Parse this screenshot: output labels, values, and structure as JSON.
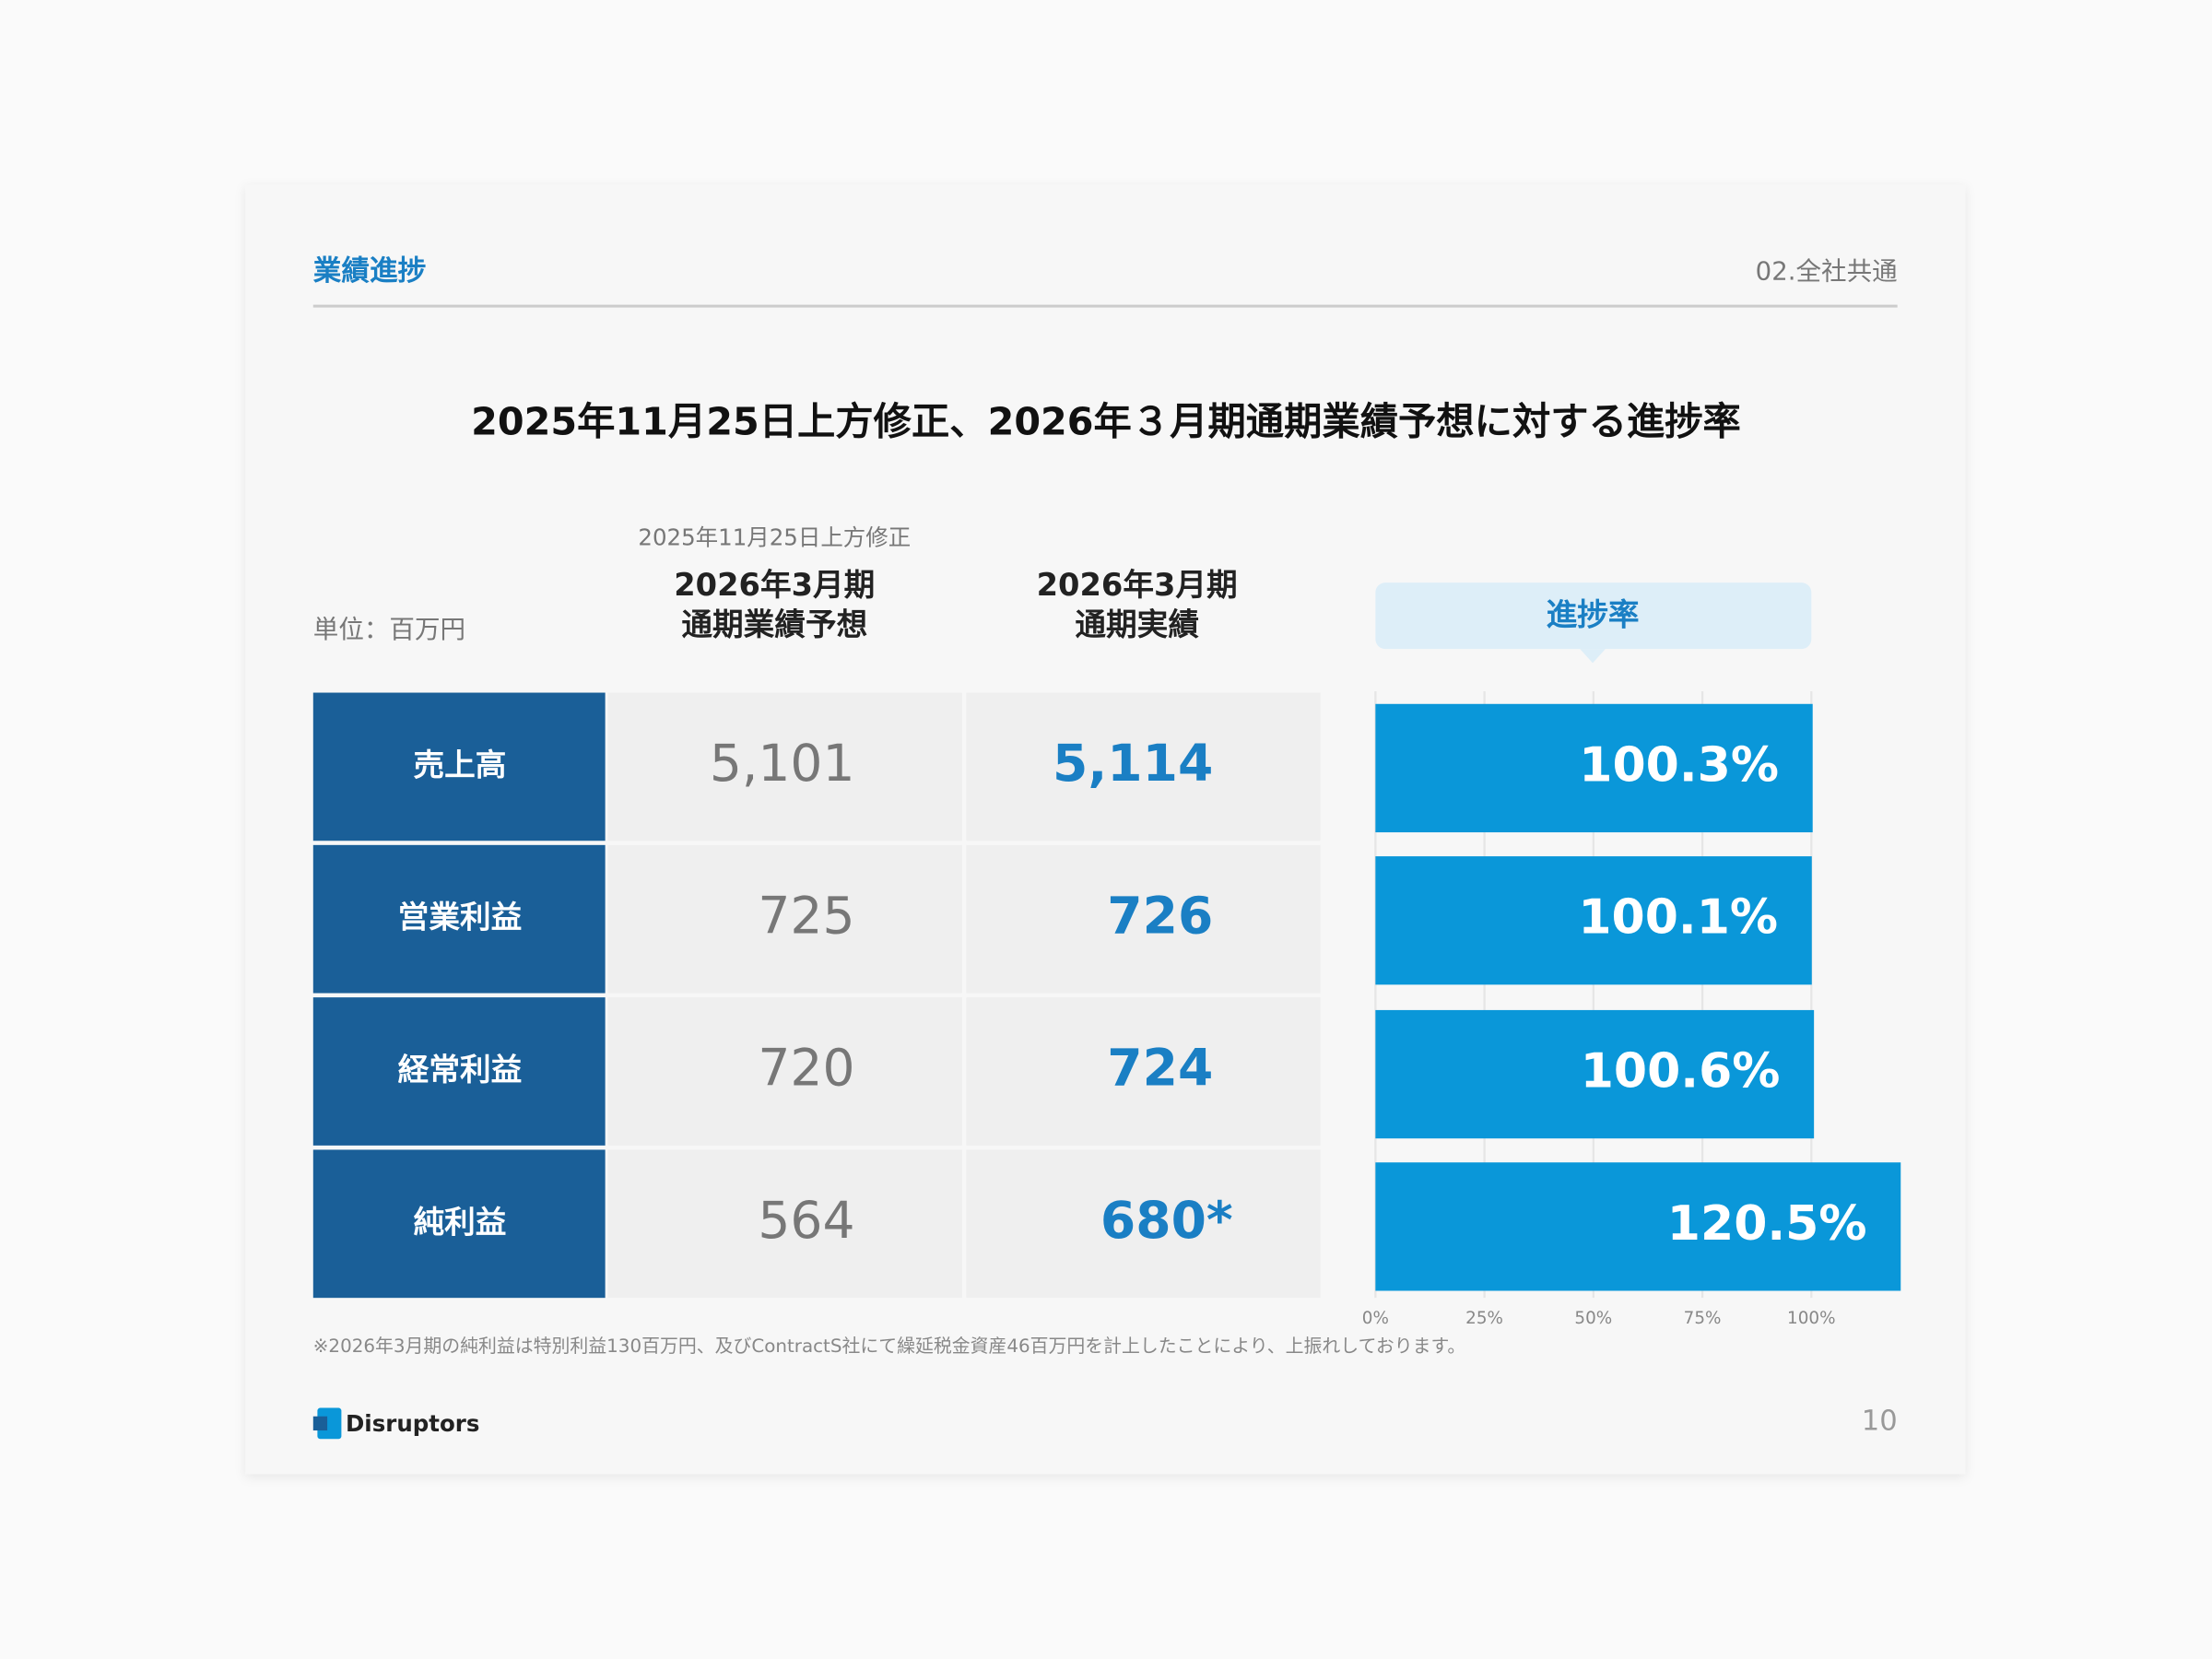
{
  "header": {
    "section": "業績進捗",
    "chapter": "02.全社共通"
  },
  "title": "2025年11月25日上方修正、2026年３月期通期業績予想に対する進捗率",
  "table": {
    "unit": "単位：百万円",
    "columns": [
      {
        "note": "2025年11月25日上方修正",
        "label": [
          "2026年3月期",
          "通期業績予想"
        ]
      },
      {
        "label": [
          "2026年3月期",
          "通期実績"
        ]
      }
    ],
    "rows": [
      [
        "売上高",
        "5,101",
        "5,114"
      ],
      [
        "営業利益",
        "725",
        "726"
      ],
      [
        "経常利益",
        "720",
        "724"
      ],
      [
        "純利益",
        "564",
        "680*"
      ]
    ]
  },
  "chart_data": {
    "type": "bar",
    "orientation": "horizontal",
    "title": "進捗率",
    "values": [
      100.3,
      100.1,
      100.6,
      120.5
    ],
    "value_labels": [
      "100.3%",
      "100.1%",
      "100.6%",
      "120.5%"
    ],
    "color": "#0a97d9",
    "xlim": [
      0,
      100
    ],
    "xticks": [
      {
        "value": 0,
        "label": "0%"
      },
      {
        "value": 25,
        "label": "25%"
      },
      {
        "value": 50,
        "label": "50%"
      },
      {
        "value": 75,
        "label": "75%"
      },
      {
        "value": 100,
        "label": "100%"
      }
    ],
    "grid": true
  },
  "footnote": "※2026年3月期の純利益は特別利益130百万円、及びContractS社にて繰延税金資産46百万円を計上したことにより、上振れしております。",
  "logo": "Disruptors",
  "page": "10"
}
